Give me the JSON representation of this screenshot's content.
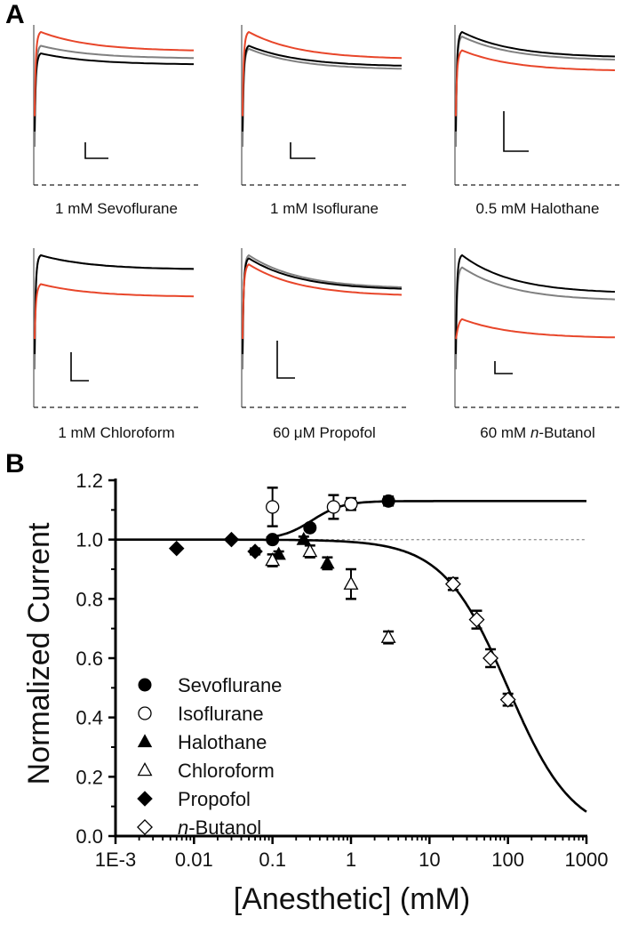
{
  "figure": {
    "panel_a": {
      "letter": "A",
      "traces": [
        {
          "label": "1 mM Sevoflurane",
          "label_parts": [
            "1 mM Sevoflurane"
          ],
          "order_top_to_bottom": [
            "red",
            "gray",
            "black"
          ],
          "levels": {
            "red": 1.0,
            "gray": 0.91,
            "black": 0.86
          },
          "decay_to": {
            "red": 0.88,
            "gray": 0.83,
            "black": 0.79
          }
        },
        {
          "label": "1 mM Isoflurane",
          "label_parts": [
            "1 mM Isoflurane"
          ],
          "order_top_to_bottom": [
            "red",
            "black",
            "gray"
          ],
          "levels": {
            "red": 1.0,
            "gray": 0.89,
            "black": 0.91
          },
          "decay_to": {
            "red": 0.83,
            "gray": 0.76,
            "black": 0.78
          }
        },
        {
          "label": "0.5 mM Halothane",
          "label_parts": [
            "0.5 mM Halothane"
          ],
          "order_top_to_bottom": [
            "black",
            "gray",
            "red"
          ],
          "levels": {
            "red": 0.88,
            "gray": 0.97,
            "black": 1.0
          },
          "decay_to": {
            "red": 0.75,
            "gray": 0.82,
            "black": 0.84
          }
        },
        {
          "label": "1 mM Chloroform",
          "label_parts": [
            "1 mM Chloroform"
          ],
          "order_top_to_bottom": [
            "gray",
            "black",
            "red"
          ],
          "levels": {
            "red": 0.81,
            "gray": 1.0,
            "black": 1.0
          },
          "decay_to": {
            "red": 0.73,
            "gray": 0.91,
            "black": 0.91
          }
        },
        {
          "label": "60 μM Propofol",
          "label_parts": [
            "60 μM Propofol"
          ],
          "order_top_to_bottom": [
            "gray",
            "black",
            "red"
          ],
          "levels": {
            "red": 0.94,
            "gray": 1.0,
            "black": 0.98
          },
          "decay_to": {
            "red": 0.74,
            "gray": 0.79,
            "black": 0.78
          }
        },
        {
          "label": "60 mM n-Butanol",
          "label_parts": [
            "60 mM ",
            "n",
            "-Butanol"
          ],
          "order_top_to_bottom": [
            "black",
            "gray",
            "red"
          ],
          "levels": {
            "red": 0.58,
            "gray": 0.92,
            "black": 1.0
          },
          "decay_to": {
            "red": 0.46,
            "gray": 0.71,
            "black": 0.76
          }
        }
      ],
      "colors": {
        "red": "#e8462a",
        "gray": "#808080",
        "black": "#000000",
        "baseline": "#222222"
      }
    },
    "panel_b": {
      "letter": "B"
    }
  },
  "chart_data": {
    "type": "scatter",
    "title": "",
    "xlabel": "[Anesthetic] (mM)",
    "ylabel": "Normalized Current",
    "xscale": "log",
    "xlim": [
      0.001,
      1000
    ],
    "ylim": [
      0.0,
      1.2
    ],
    "x_ticks": [
      0.001,
      0.01,
      0.1,
      1,
      10,
      100,
      1000
    ],
    "x_tick_labels": [
      "1E-3",
      "0.01",
      "0.1",
      "1",
      "10",
      "100",
      "1000"
    ],
    "y_ticks": [
      0.0,
      0.2,
      0.4,
      0.6,
      0.8,
      1.0,
      1.2
    ],
    "y_tick_labels": [
      "0.0",
      "0.2",
      "0.4",
      "0.6",
      "0.8",
      "1.0",
      "1.2"
    ],
    "reference_line": {
      "y": 1.0,
      "style": "dotted",
      "color": "#999999"
    },
    "legend": {
      "placement": "lower-left",
      "entries": [
        {
          "name": "Sevoflurane",
          "marker": "circle",
          "filled": true
        },
        {
          "name": "Isoflurane",
          "marker": "circle",
          "filled": false
        },
        {
          "name": "Halothane",
          "marker": "triangle",
          "filled": true
        },
        {
          "name": "Chloroform",
          "marker": "triangle",
          "filled": false
        },
        {
          "name": "Propofol",
          "marker": "diamond",
          "filled": true
        },
        {
          "name": "n-Butanol",
          "marker": "diamond",
          "filled": false,
          "italic_prefix": "n"
        }
      ]
    },
    "series": [
      {
        "name": "Sevoflurane",
        "marker": "circle",
        "filled": true,
        "points": [
          {
            "x": 0.1,
            "y": 1.0,
            "err": 0.0
          },
          {
            "x": 0.3,
            "y": 1.04,
            "err": 0.01
          },
          {
            "x": 3,
            "y": 1.13,
            "err": 0.015
          }
        ]
      },
      {
        "name": "Isoflurane",
        "marker": "circle",
        "filled": false,
        "points": [
          {
            "x": 0.1,
            "y": 1.11,
            "err": 0.065
          },
          {
            "x": 0.6,
            "y": 1.11,
            "err": 0.04
          },
          {
            "x": 1,
            "y": 1.12,
            "err": 0.02
          }
        ]
      },
      {
        "name": "Halothane",
        "marker": "triangle",
        "filled": true,
        "points": [
          {
            "x": 0.12,
            "y": 0.95,
            "err": 0.01
          },
          {
            "x": 0.25,
            "y": 1.0,
            "err": 0.01
          },
          {
            "x": 0.5,
            "y": 0.92,
            "err": 0.02
          }
        ]
      },
      {
        "name": "Chloroform",
        "marker": "triangle",
        "filled": false,
        "points": [
          {
            "x": 0.1,
            "y": 0.93,
            "err": 0.02
          },
          {
            "x": 0.3,
            "y": 0.96,
            "err": 0.02
          },
          {
            "x": 1,
            "y": 0.85,
            "err": 0.05
          },
          {
            "x": 3,
            "y": 0.67,
            "err": 0.02
          }
        ]
      },
      {
        "name": "Propofol",
        "marker": "diamond",
        "filled": true,
        "points": [
          {
            "x": 0.006,
            "y": 0.97,
            "err": 0.0
          },
          {
            "x": 0.03,
            "y": 1.0,
            "err": 0.0
          },
          {
            "x": 0.06,
            "y": 0.96,
            "err": 0.01
          }
        ]
      },
      {
        "name": "n-Butanol",
        "marker": "diamond",
        "filled": false,
        "points": [
          {
            "x": 20,
            "y": 0.85,
            "err": 0.02
          },
          {
            "x": 40,
            "y": 0.73,
            "err": 0.03
          },
          {
            "x": 60,
            "y": 0.6,
            "err": 0.03
          },
          {
            "x": 100,
            "y": 0.46,
            "err": 0.02
          }
        ]
      }
    ],
    "fits": [
      {
        "name": "potentiation-fit",
        "type": "hill-increase",
        "bottom": 1.0,
        "top": 1.13,
        "ec50": 0.32,
        "hill": 2.2,
        "x_range": [
          0.001,
          1000
        ]
      },
      {
        "name": "inhibition-fit",
        "type": "hill-decrease",
        "top": 1.0,
        "bottom": 0.0,
        "ic50": 100,
        "hill": 1.05,
        "x_range": [
          0.001,
          1000
        ]
      }
    ]
  }
}
